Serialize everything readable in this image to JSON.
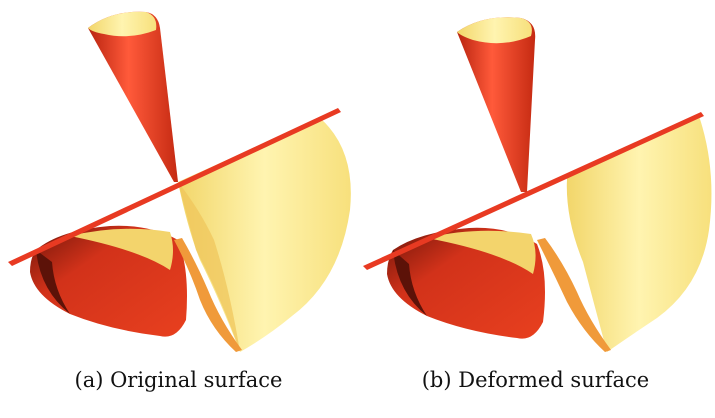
{
  "figure": {
    "panels": [
      {
        "caption": "(a) Original surface"
      },
      {
        "caption": "(b) Deformed surface"
      }
    ],
    "colors": {
      "outer_red": "#e83a22",
      "dark_red": "#7a1a0e",
      "inner_yellow": "#f5e27a",
      "light_yellow": "#fff4b0",
      "orange": "#f09a3a"
    }
  }
}
